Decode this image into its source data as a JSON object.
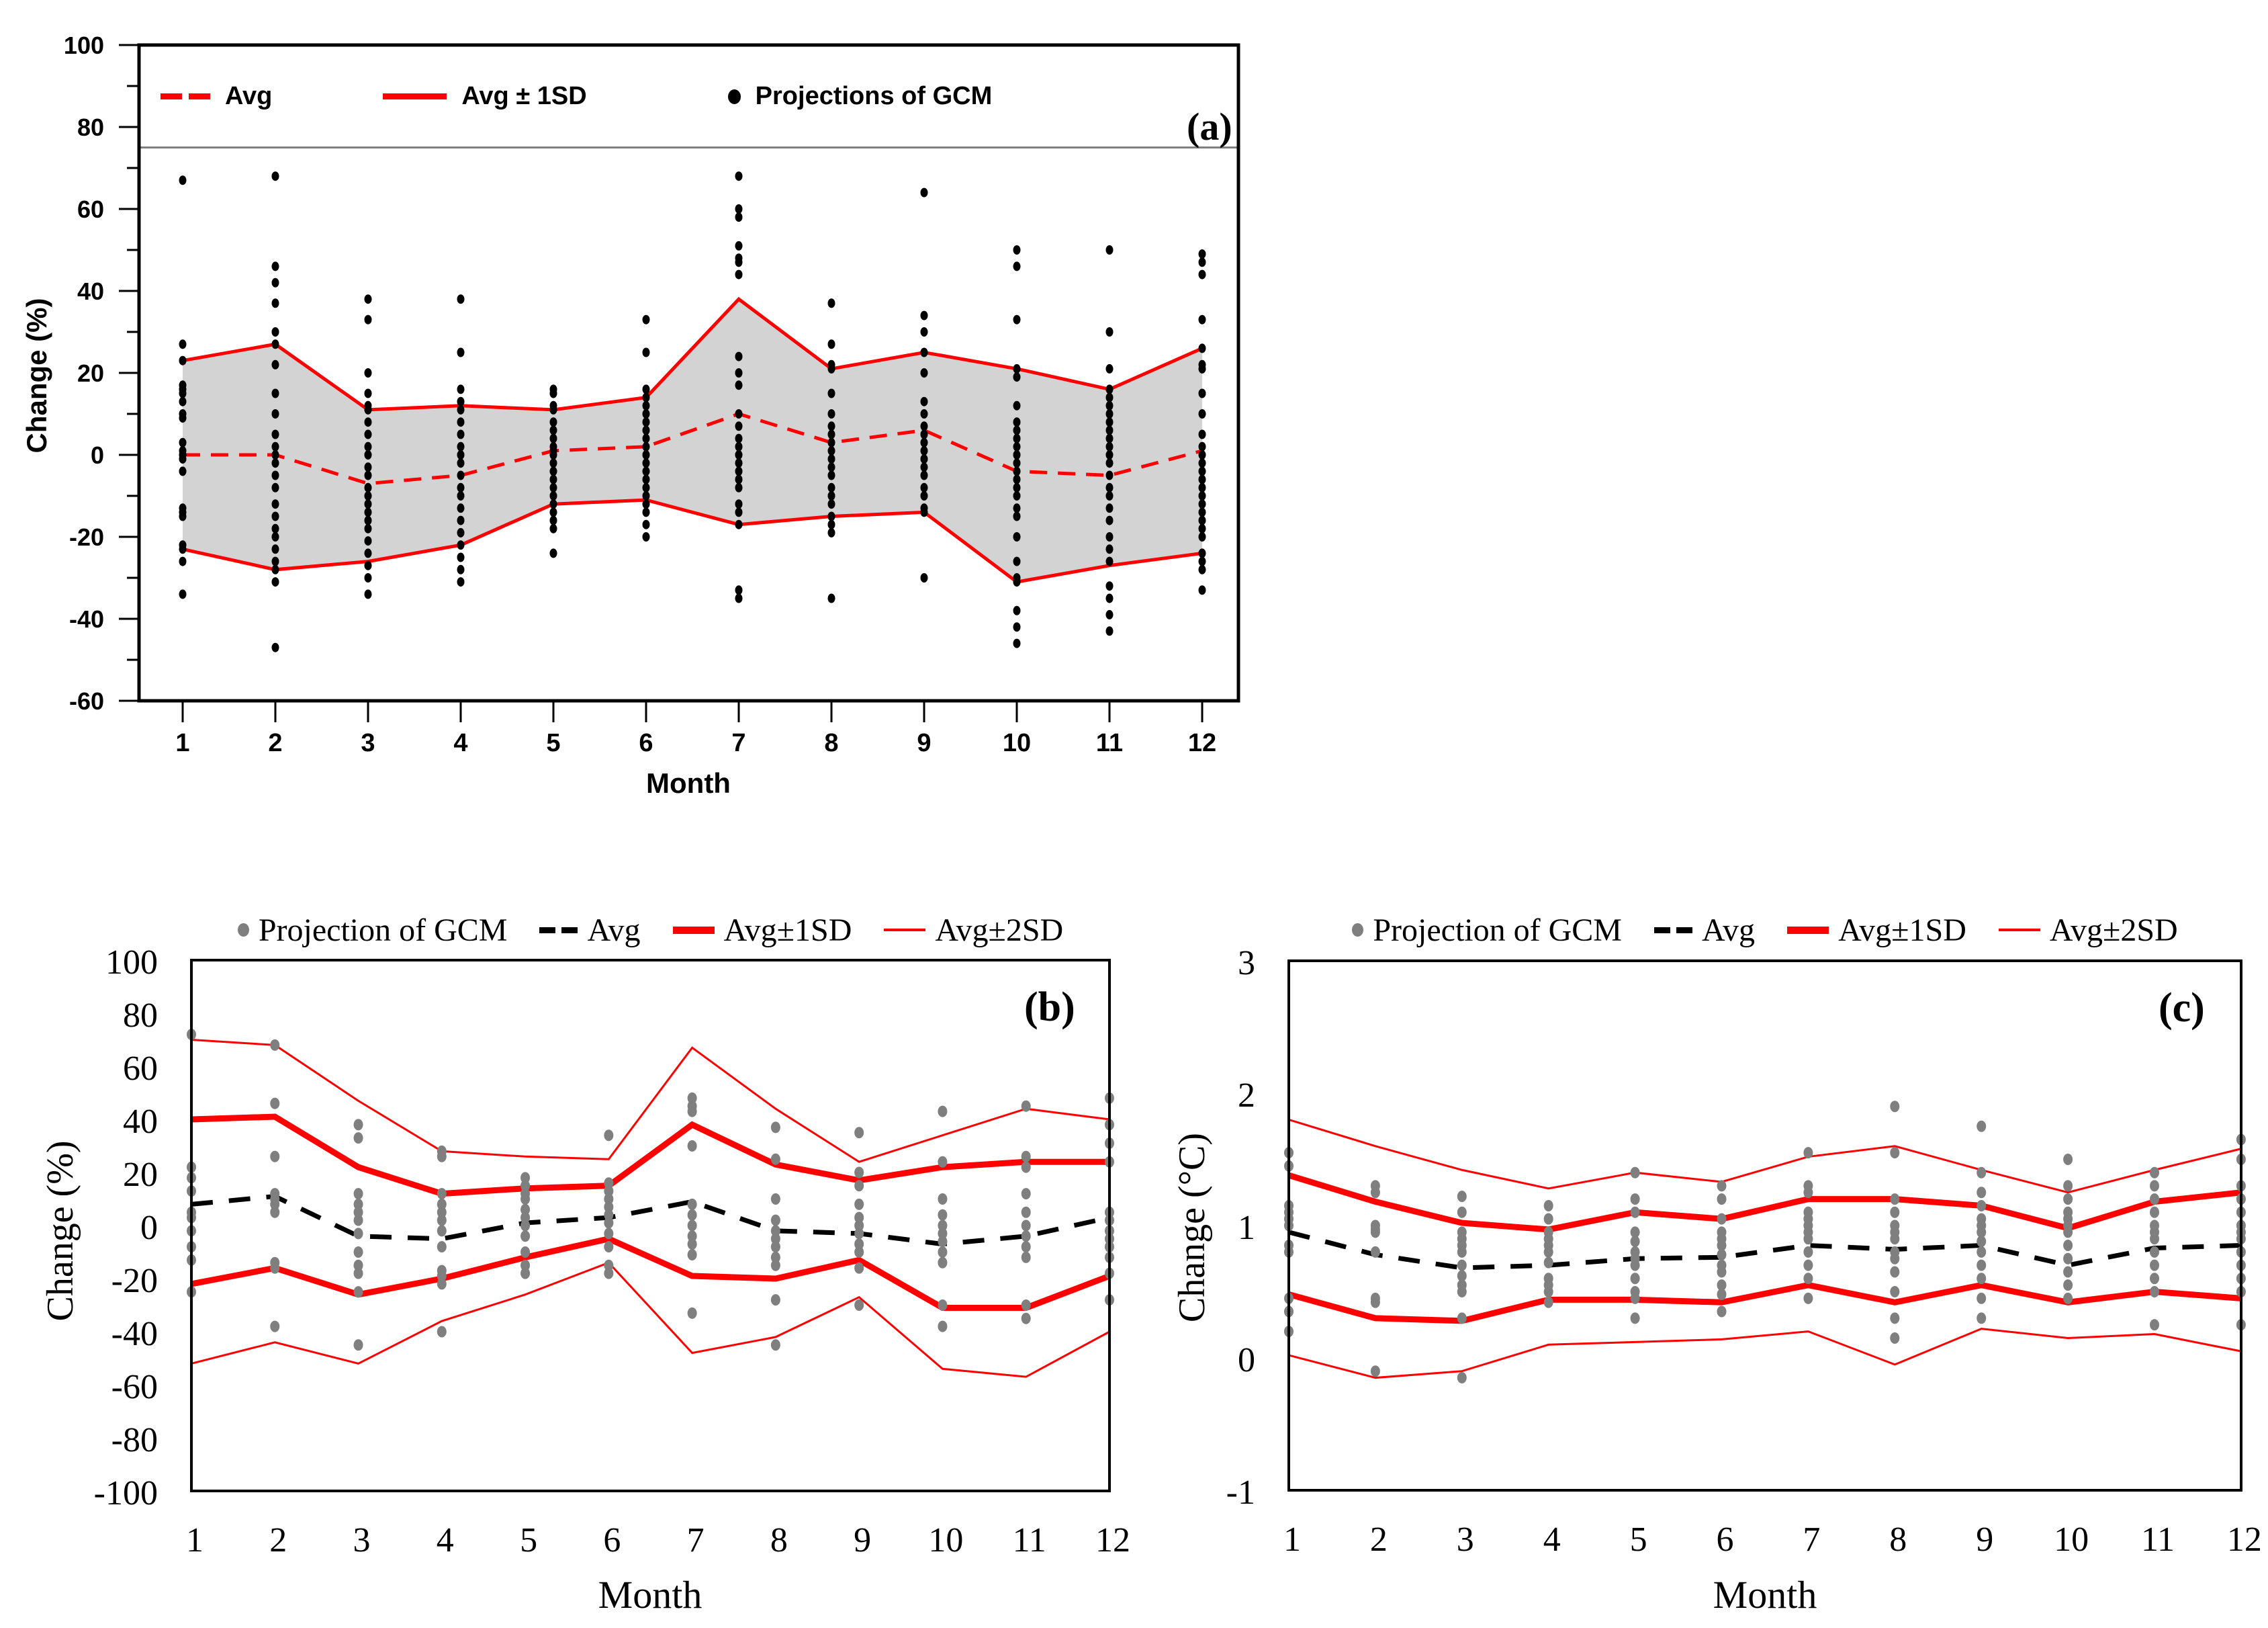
{
  "figure": {
    "background": "#FFFFFF",
    "colors": {
      "red": "#FF0000",
      "black": "#000000",
      "gray_dot": "#7F7F7F",
      "band_fill": "#D3D3D3",
      "divider_gray": "#808080"
    }
  },
  "chart_data": [
    {
      "id": "a",
      "panel_label": "(a)",
      "type": "line+scatter",
      "xlabel": "Month",
      "ylabel": "Change (%)",
      "xlim": [
        1,
        12
      ],
      "ylim": [
        -60,
        100
      ],
      "x_ticks": [
        "1",
        "2",
        "3",
        "4",
        "5",
        "6",
        "7",
        "8",
        "9",
        "10",
        "11",
        "12"
      ],
      "y_ticks": [
        100,
        80,
        60,
        40,
        20,
        0,
        -20,
        -40,
        -60
      ],
      "y_minor_ticks": [
        90,
        70,
        50,
        30,
        10,
        -10,
        -30,
        -50
      ],
      "grid": false,
      "legend_position": "top-strip-inside",
      "legend": [
        {
          "label": "Avg",
          "style": "red-dashed"
        },
        {
          "label": "Avg ± 1SD",
          "style": "red-solid"
        },
        {
          "label": "Projections of GCM",
          "style": "black-dot"
        }
      ],
      "divider_y": 75,
      "band": {
        "between": [
          "Avg+1SD",
          "Avg-1SD"
        ],
        "fill": "#D3D3D3"
      },
      "categories": [
        1,
        2,
        3,
        4,
        5,
        6,
        7,
        8,
        9,
        10,
        11,
        12
      ],
      "series": [
        {
          "name": "Avg",
          "style": "red-dashed",
          "values": [
            0,
            0,
            -7,
            -5,
            1,
            2,
            10,
            3,
            6,
            -4,
            -5,
            1
          ]
        },
        {
          "name": "Avg+1SD",
          "style": "red-solid",
          "values": [
            23,
            27,
            11,
            12,
            11,
            14,
            38,
            21,
            25,
            21,
            16,
            26
          ]
        },
        {
          "name": "Avg-1SD",
          "style": "red-solid",
          "values": [
            -23,
            -28,
            -26,
            -22,
            -12,
            -11,
            -17,
            -15,
            -14,
            -31,
            -27,
            -24
          ]
        }
      ],
      "scatter": {
        "name": "Projections of GCM",
        "color": "#000000",
        "points_by_month": [
          [
            67,
            27,
            23,
            17,
            16,
            15,
            13,
            10,
            9,
            3,
            1,
            0,
            -1,
            -4,
            -13,
            -14,
            -15,
            -22,
            -23,
            -26,
            -34
          ],
          [
            68,
            46,
            42,
            37,
            30,
            27,
            22,
            15,
            10,
            5,
            2,
            0,
            -2,
            -5,
            -8,
            -12,
            -15,
            -18,
            -20,
            -23,
            -26,
            -28,
            -31,
            -47
          ],
          [
            38,
            33,
            20,
            15,
            12,
            11,
            8,
            5,
            2,
            0,
            -3,
            -5,
            -8,
            -10,
            -12,
            -14,
            -16,
            -18,
            -21,
            -24,
            -27,
            -30,
            -34
          ],
          [
            38,
            25,
            16,
            13,
            11,
            8,
            5,
            2,
            0,
            -2,
            -5,
            -8,
            -10,
            -13,
            -16,
            -19,
            -22,
            -25,
            -28,
            -31
          ],
          [
            16,
            15,
            12,
            11,
            8,
            6,
            4,
            2,
            1,
            0,
            -2,
            -4,
            -6,
            -8,
            -10,
            -12,
            -14,
            -16,
            -18,
            -24
          ],
          [
            33,
            25,
            16,
            14,
            12,
            10,
            8,
            6,
            4,
            2,
            0,
            -2,
            -4,
            -6,
            -8,
            -10,
            -12,
            -14,
            -17,
            -20
          ],
          [
            68,
            60,
            58,
            51,
            48,
            47,
            44,
            24,
            20,
            17,
            10,
            7,
            4,
            2,
            0,
            -2,
            -4,
            -6,
            -8,
            -12,
            -14,
            -17,
            -33,
            -35
          ],
          [
            37,
            27,
            22,
            21,
            15,
            10,
            7,
            5,
            3,
            1,
            -1,
            -3,
            -5,
            -8,
            -10,
            -12,
            -15,
            -17,
            -19,
            -35
          ],
          [
            64,
            34,
            30,
            25,
            20,
            13,
            10,
            7,
            5,
            3,
            1,
            -1,
            -3,
            -5,
            -8,
            -10,
            -13,
            -14,
            -30
          ],
          [
            50,
            46,
            33,
            21,
            19,
            12,
            8,
            6,
            4,
            2,
            0,
            -2,
            -4,
            -6,
            -8,
            -10,
            -13,
            -15,
            -20,
            -26,
            -30,
            -31,
            -38,
            -42,
            -46
          ],
          [
            50,
            30,
            21,
            16,
            14,
            12,
            10,
            8,
            6,
            4,
            2,
            0,
            -2,
            -5,
            -8,
            -10,
            -13,
            -16,
            -20,
            -23,
            -26,
            -32,
            -35,
            -39,
            -43
          ],
          [
            49,
            47,
            44,
            33,
            26,
            22,
            21,
            15,
            10,
            5,
            2,
            0,
            -2,
            -4,
            -6,
            -8,
            -10,
            -12,
            -14,
            -16,
            -18,
            -20,
            -24,
            -26,
            -28,
            -33
          ]
        ]
      }
    },
    {
      "id": "b",
      "panel_label": "(b)",
      "type": "line+scatter",
      "xlabel": "Month",
      "ylabel": "Change (%)",
      "xlim": [
        1,
        12
      ],
      "ylim": [
        -100,
        100
      ],
      "x_ticks": [
        "1",
        "2",
        "3",
        "4",
        "5",
        "6",
        "7",
        "8",
        "9",
        "10",
        "11",
        "12"
      ],
      "y_ticks": [
        100,
        80,
        60,
        40,
        20,
        0,
        -20,
        -40,
        -60,
        -80,
        -100
      ],
      "grid": false,
      "legend_position": "above",
      "legend": [
        {
          "label": "Projection of GCM",
          "style": "gray-dot"
        },
        {
          "label": "Avg",
          "style": "black-dashed"
        },
        {
          "label": "Avg±1SD",
          "style": "red-thick"
        },
        {
          "label": "Avg±2SD",
          "style": "red-thin"
        }
      ],
      "categories": [
        1,
        2,
        3,
        4,
        5,
        6,
        7,
        8,
        9,
        10,
        11,
        12
      ],
      "series": [
        {
          "name": "Avg",
          "style": "black-dashed",
          "values": [
            8,
            11,
            -4,
            -5,
            1,
            3,
            9,
            -2,
            -3,
            -7,
            -4,
            3
          ]
        },
        {
          "name": "Avg+1SD",
          "style": "red-thick",
          "values": [
            40,
            41,
            22,
            12,
            14,
            15,
            38,
            23,
            17,
            22,
            24,
            24
          ]
        },
        {
          "name": "Avg-1SD",
          "style": "red-thick",
          "values": [
            -22,
            -16,
            -26,
            -20,
            -12,
            -5,
            -19,
            -20,
            -13,
            -31,
            -31,
            -19
          ]
        },
        {
          "name": "Avg+2SD",
          "style": "red-thin",
          "values": [
            70,
            68,
            47,
            28,
            26,
            25,
            67,
            44,
            24,
            34,
            44,
            40
          ]
        },
        {
          "name": "Avg-2SD",
          "style": "red-thin",
          "values": [
            -52,
            -44,
            -52,
            -36,
            -26,
            -14,
            -48,
            -42,
            -27,
            -54,
            -57,
            -40
          ]
        }
      ],
      "scatter": {
        "name": "Projection of GCM",
        "color": "#7F7F7F",
        "points_by_month": [
          [
            72,
            22,
            18,
            13,
            5,
            3,
            -2,
            -8,
            -13,
            -25
          ],
          [
            68,
            46,
            26,
            12,
            10,
            8,
            5,
            -14,
            -16,
            -38
          ],
          [
            38,
            33,
            12,
            8,
            5,
            2,
            -3,
            -10,
            -15,
            -18,
            -25,
            -45
          ],
          [
            28,
            26,
            12,
            8,
            5,
            2,
            -2,
            -8,
            -17,
            -19,
            -22,
            -40
          ],
          [
            18,
            15,
            12,
            10,
            6,
            3,
            0,
            -4,
            -10,
            -15,
            -18
          ],
          [
            34,
            16,
            13,
            10,
            7,
            4,
            1,
            -3,
            -8,
            -15,
            -18
          ],
          [
            48,
            45,
            43,
            30,
            8,
            4,
            0,
            -4,
            -7,
            -11,
            -33
          ],
          [
            37,
            25,
            10,
            2,
            -2,
            -5,
            -8,
            -12,
            -15,
            -28,
            -45
          ],
          [
            35,
            20,
            15,
            8,
            3,
            0,
            -3,
            -7,
            -10,
            -16,
            -30
          ],
          [
            43,
            24,
            10,
            4,
            0,
            -3,
            -6,
            -10,
            -14,
            -30,
            -38
          ],
          [
            45,
            26,
            22,
            12,
            5,
            0,
            -4,
            -8,
            -12,
            -30,
            -35
          ],
          [
            48,
            38,
            31,
            24,
            5,
            2,
            -2,
            -5,
            -8,
            -12,
            -18,
            -28
          ]
        ]
      }
    },
    {
      "id": "c",
      "panel_label": "(c)",
      "type": "line+scatter",
      "xlabel": "Month",
      "ylabel": "Change (°C)",
      "xlim": [
        1,
        12
      ],
      "ylim": [
        -1,
        3
      ],
      "x_ticks": [
        "1",
        "2",
        "3",
        "4",
        "5",
        "6",
        "7",
        "8",
        "9",
        "10",
        "11",
        "12"
      ],
      "y_ticks": [
        3,
        2,
        1,
        0,
        -1
      ],
      "grid": false,
      "legend_position": "above",
      "legend": [
        {
          "label": "Projection of GCM",
          "style": "gray-dot"
        },
        {
          "label": "Avg",
          "style": "black-dashed"
        },
        {
          "label": "Avg±1SD",
          "style": "red-thick"
        },
        {
          "label": "Avg±2SD",
          "style": "red-thin"
        }
      ],
      "categories": [
        1,
        2,
        3,
        4,
        5,
        6,
        7,
        8,
        9,
        10,
        11,
        12
      ],
      "series": [
        {
          "name": "Avg",
          "style": "black-dashed",
          "values": [
            0.95,
            0.78,
            0.68,
            0.7,
            0.75,
            0.76,
            0.85,
            0.82,
            0.85,
            0.7,
            0.83,
            0.85
          ]
        },
        {
          "name": "Avg+1SD",
          "style": "red-thick",
          "values": [
            1.38,
            1.18,
            1.02,
            0.97,
            1.1,
            1.05,
            1.2,
            1.2,
            1.15,
            0.98,
            1.18,
            1.25
          ]
        },
        {
          "name": "Avg-1SD",
          "style": "red-thick",
          "values": [
            0.48,
            0.3,
            0.28,
            0.44,
            0.44,
            0.42,
            0.55,
            0.42,
            0.55,
            0.42,
            0.5,
            0.45
          ]
        },
        {
          "name": "Avg+2SD",
          "style": "red-thin",
          "values": [
            1.8,
            1.6,
            1.42,
            1.28,
            1.4,
            1.33,
            1.52,
            1.6,
            1.42,
            1.25,
            1.42,
            1.58
          ]
        },
        {
          "name": "Avg-2SD",
          "style": "red-thin",
          "values": [
            0.02,
            -0.15,
            -0.1,
            0.1,
            0.12,
            0.14,
            0.2,
            -0.05,
            0.22,
            0.15,
            0.18,
            0.05
          ]
        }
      ],
      "scatter": {
        "name": "Projection of GCM",
        "color": "#7F7F7F",
        "points_by_month": [
          [
            1.55,
            1.45,
            1.15,
            1.1,
            1.05,
            1.0,
            0.85,
            0.8,
            0.45,
            0.35,
            0.2
          ],
          [
            1.3,
            1.25,
            1.0,
            0.97,
            0.95,
            0.8,
            0.45,
            0.42,
            -0.1
          ],
          [
            1.22,
            1.1,
            0.95,
            0.9,
            0.85,
            0.8,
            0.7,
            0.62,
            0.55,
            0.5,
            0.3,
            -0.15
          ],
          [
            1.15,
            1.05,
            0.95,
            0.9,
            0.85,
            0.8,
            0.72,
            0.6,
            0.55,
            0.5,
            0.42
          ],
          [
            1.4,
            1.2,
            1.1,
            0.95,
            0.88,
            0.8,
            0.75,
            0.7,
            0.6,
            0.5,
            0.45,
            0.3
          ],
          [
            1.3,
            1.2,
            1.05,
            0.95,
            0.9,
            0.85,
            0.78,
            0.7,
            0.65,
            0.55,
            0.48,
            0.35
          ],
          [
            1.55,
            1.3,
            1.25,
            1.1,
            1.05,
            1.0,
            0.95,
            0.9,
            0.8,
            0.7,
            0.6,
            0.45
          ],
          [
            1.9,
            1.55,
            1.2,
            1.1,
            1.0,
            0.95,
            0.9,
            0.8,
            0.75,
            0.65,
            0.5,
            0.3,
            0.15
          ],
          [
            1.75,
            1.4,
            1.25,
            1.15,
            1.05,
            1.0,
            0.95,
            0.88,
            0.8,
            0.7,
            0.6,
            0.45,
            0.3
          ],
          [
            1.5,
            1.3,
            1.2,
            1.1,
            1.05,
            1.0,
            0.95,
            0.85,
            0.75,
            0.65,
            0.55,
            0.45
          ],
          [
            1.4,
            1.3,
            1.2,
            1.1,
            1.0,
            0.95,
            0.9,
            0.8,
            0.7,
            0.6,
            0.5,
            0.25
          ],
          [
            1.65,
            1.5,
            1.3,
            1.2,
            1.1,
            1.0,
            0.95,
            0.9,
            0.8,
            0.7,
            0.6,
            0.5,
            0.25
          ]
        ]
      }
    }
  ]
}
